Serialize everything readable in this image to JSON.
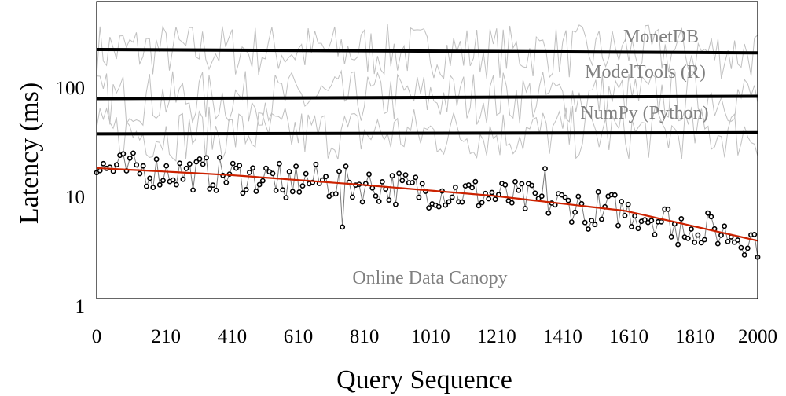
{
  "chart_data": {
    "type": "line",
    "title": "",
    "xlabel": "Query Sequence",
    "ylabel": "Latency (ms)",
    "xlim": [
      0,
      2000
    ],
    "ylim": [
      1,
      500
    ],
    "yscale": "log",
    "grid": false,
    "x_ticks": [
      "0",
      "210",
      "410",
      "610",
      "810",
      "1010",
      "1210",
      "1410",
      "1610",
      "1810",
      "2000"
    ],
    "x_tick_values": [
      0,
      210,
      410,
      610,
      810,
      1010,
      1210,
      1410,
      1610,
      1810,
      2000
    ],
    "y_ticks": [
      "1",
      "10",
      "100"
    ],
    "y_tick_values": [
      1,
      10,
      100
    ],
    "series_labels": {
      "monetdb": "MonetDB",
      "modeltools": "ModelTools (R)",
      "numpy": "NumPy (Python)",
      "canopy": "Online Data Canopy"
    },
    "trend_lines": [
      {
        "name": "MonetDB",
        "x": [
          0,
          2000
        ],
        "y": [
          225,
          210
        ]
      },
      {
        "name": "ModelTools (R)",
        "x": [
          0,
          2000
        ],
        "y": [
          80,
          84
        ]
      },
      {
        "name": "NumPy (Python)",
        "x": [
          0,
          2000
        ],
        "y": [
          38,
          39
        ]
      }
    ],
    "canopy_fit": {
      "x": [
        0,
        400,
        800,
        1200,
        1600,
        2000
      ],
      "y": [
        18.5,
        16,
        13,
        10.3,
        7.5,
        4.0
      ]
    },
    "colors": {
      "trend": "#000000",
      "fit": "#cc2200",
      "noise": "#c0c0c0",
      "points": "#000000"
    }
  }
}
